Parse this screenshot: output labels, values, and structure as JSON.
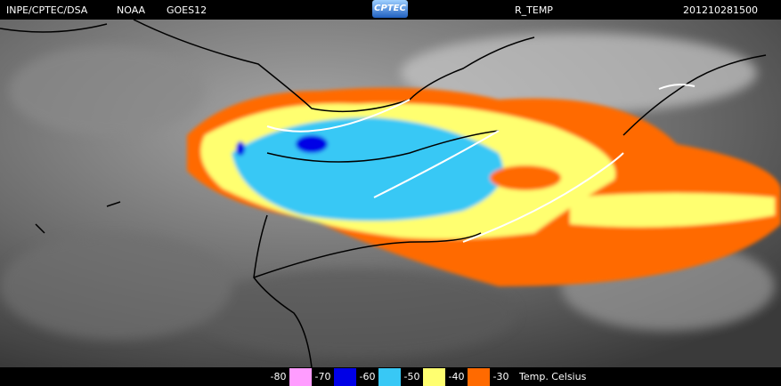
{
  "header": {
    "institution": "INPE/CPTEC/DSA",
    "agency": "NOAA",
    "satellite": "GOES12",
    "logo": "CPTEC",
    "product": "R_TEMP",
    "timestamp": "201210281500"
  },
  "legend": {
    "title": "Temp. Celsius",
    "labels": [
      -80,
      -70,
      -60,
      -50,
      -40,
      -30
    ],
    "colors": [
      "#ff9cff",
      "#0000e6",
      "#38c8f5",
      "#ffff70",
      "#ff6a00"
    ]
  }
}
